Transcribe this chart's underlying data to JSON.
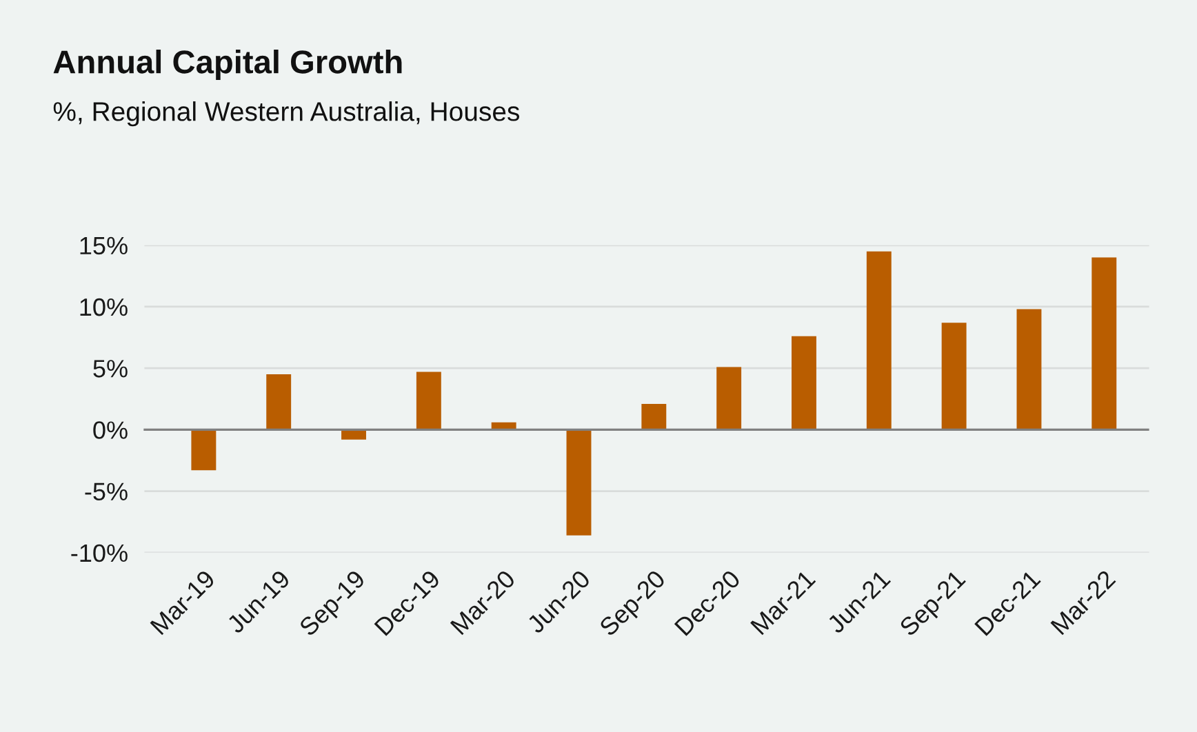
{
  "chart_data": {
    "type": "bar",
    "title": "Annual Capital Growth",
    "subtitle": "%, Regional Western Australia, Houses",
    "categories": [
      "Mar-19",
      "Jun-19",
      "Sep-19",
      "Dec-19",
      "Mar-20",
      "Jun-20",
      "Sep-20",
      "Dec-20",
      "Mar-21",
      "Jun-21",
      "Sep-21",
      "Dec-21",
      "Mar-22"
    ],
    "values": [
      -3.3,
      4.5,
      -0.8,
      4.7,
      0.6,
      -8.6,
      2.1,
      5.1,
      7.6,
      14.5,
      8.7,
      9.8,
      14.0
    ],
    "color": "#b95d00",
    "ylim": [
      -10,
      15
    ],
    "yticks": [
      {
        "value": -10,
        "label": "-10%"
      },
      {
        "value": -5,
        "label": "-5%"
      },
      {
        "value": 0,
        "label": "0%"
      },
      {
        "value": 5,
        "label": "5%"
      },
      {
        "value": 10,
        "label": "10%"
      },
      {
        "value": 15,
        "label": "15%"
      }
    ],
    "grid": "y",
    "legend": false
  }
}
